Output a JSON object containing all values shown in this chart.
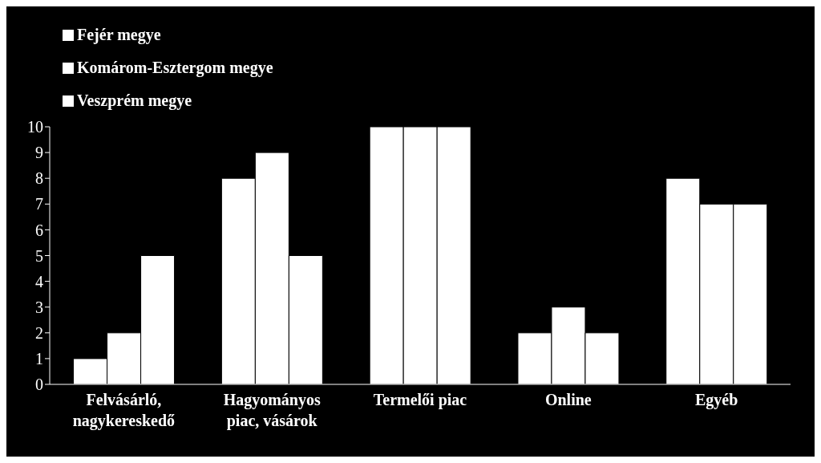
{
  "chart_data": {
    "type": "bar",
    "categories": [
      "Felvásárló, nagykereskedő",
      "Hagyományos piac, vásárok",
      "Termelői piac",
      "Online",
      "Egyéb"
    ],
    "series": [
      {
        "name": "Fejér megye",
        "color": "#ffffff",
        "values": [
          1,
          8,
          10,
          2,
          8
        ]
      },
      {
        "name": "Komárom-Esztergom megye",
        "color": "#ffffff",
        "values": [
          2,
          9,
          10,
          3,
          7
        ]
      },
      {
        "name": "Veszprém megye",
        "color": "#ffffff",
        "values": [
          5,
          5,
          10,
          2,
          7
        ]
      }
    ],
    "ylim": [
      0,
      10
    ],
    "yticks": [
      0,
      1,
      2,
      3,
      4,
      5,
      6,
      7,
      8,
      9,
      10
    ],
    "grid": false,
    "legend": "top left"
  }
}
